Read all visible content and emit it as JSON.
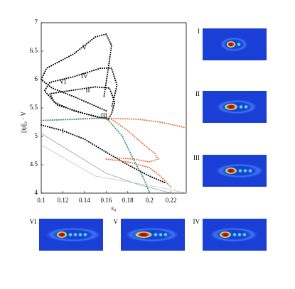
{
  "chart_data": {
    "type": "line",
    "x_label": "ε₀",
    "y_label": "||ψ||₂ · V",
    "xlim": [
      0.1,
      0.234
    ],
    "ylim": [
      4,
      7
    ],
    "xticks": [
      0.1,
      0.12,
      0.14,
      0.16,
      0.18,
      0.2,
      0.22
    ],
    "yticks": [
      4,
      4.5,
      5,
      5.5,
      6,
      6.5,
      7
    ],
    "grid": false,
    "series": [
      {
        "color": "#000000",
        "style": "dotted",
        "x": [
          0.1,
          0.12,
          0.14,
          0.16,
          0.18,
          0.2,
          0.215
        ],
        "values": [
          5.2,
          5.1,
          4.95,
          4.72,
          4.5,
          4.3,
          4.18
        ]
      },
      {
        "color": "#000000",
        "style": "dotted",
        "x": [
          0.162,
          0.15,
          0.13,
          0.112,
          0.108,
          0.125,
          0.15,
          0.163,
          0.168,
          0.165,
          0.162
        ],
        "values": [
          5.3,
          5.35,
          5.45,
          5.6,
          5.75,
          5.8,
          5.87,
          5.85,
          5.6,
          5.4,
          5.3
        ]
      },
      {
        "color": "#000000",
        "style": "dotted",
        "x": [
          0.162,
          0.14,
          0.115,
          0.103,
          0.108,
          0.13,
          0.155,
          0.165,
          0.17,
          0.165
        ],
        "values": [
          5.3,
          5.4,
          5.55,
          5.8,
          5.95,
          6.05,
          6.2,
          6.2,
          5.9,
          5.5
        ]
      },
      {
        "color": "#000000",
        "style": "dotted",
        "x": [
          0.16,
          0.13,
          0.11,
          0.1,
          0.105,
          0.13,
          0.15,
          0.16,
          0.165,
          0.162,
          0.158
        ],
        "values": [
          5.45,
          5.7,
          5.85,
          6.0,
          6.2,
          6.45,
          6.75,
          6.8,
          6.6,
          6.2,
          5.7
        ]
      },
      {
        "color": "#e8743b",
        "style": "dotted",
        "x": [
          0.1,
          0.13,
          0.16,
          0.19,
          0.21,
          0.234
        ],
        "values": [
          5.28,
          5.3,
          5.32,
          5.3,
          5.25,
          5.15
        ]
      },
      {
        "color": "#e8743b",
        "style": "dotted",
        "x": [
          0.165,
          0.18,
          0.195,
          0.205,
          0.208,
          0.2,
          0.185,
          0.17
        ],
        "values": [
          5.3,
          5.1,
          4.85,
          4.7,
          4.6,
          4.55,
          4.6,
          4.62
        ]
      },
      {
        "color": "#e8743b",
        "style": "dotted",
        "x": [
          0.16,
          0.18,
          0.2,
          0.21,
          0.22
        ],
        "values": [
          4.6,
          4.55,
          4.45,
          4.3,
          4.1
        ]
      },
      {
        "color": "#3a8f8f",
        "style": "dotted",
        "x": [
          0.1,
          0.13,
          0.16,
          0.175,
          0.185,
          0.195,
          0.2
        ],
        "values": [
          5.28,
          5.3,
          5.33,
          5.0,
          4.6,
          4.25,
          4.0
        ]
      },
      {
        "color": "#777777",
        "style": "solid",
        "x": [
          0.1,
          0.13,
          0.16,
          0.19,
          0.22
        ],
        "values": [
          5.05,
          4.7,
          4.35,
          4.15,
          4.0
        ]
      },
      {
        "color": "#aaaaaa",
        "style": "solid",
        "x": [
          0.1,
          0.15,
          0.18,
          0.21,
          0.234
        ],
        "values": [
          4.85,
          4.3,
          4.2,
          4.1,
          4.0
        ]
      }
    ],
    "annotations": [
      {
        "text": "I",
        "x": 0.12,
        "y": 5.08
      },
      {
        "text": "II",
        "x": 0.143,
        "y": 5.8
      },
      {
        "text": "III",
        "x": 0.158,
        "y": 5.35
      },
      {
        "text": "IV",
        "x": 0.14,
        "y": 6.05
      },
      {
        "text": "V",
        "x": 0.14,
        "y": 6.55
      },
      {
        "text": "VI",
        "x": 0.12,
        "y": 5.95
      }
    ]
  },
  "insets": [
    "I",
    "II",
    "III",
    "VI",
    "V",
    "IV"
  ]
}
